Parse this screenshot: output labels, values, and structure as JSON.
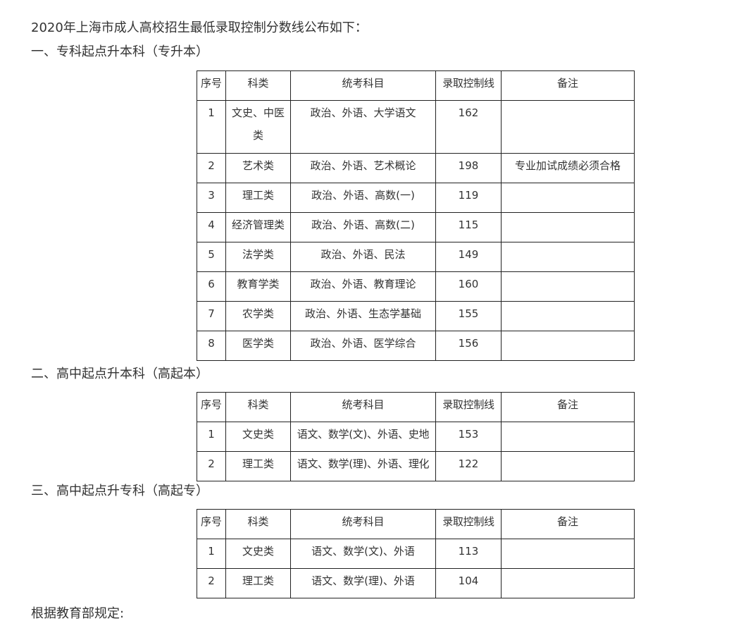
{
  "intro": "2020年上海市成人高校招生最低录取控制分数线公布如下：",
  "headers": [
    "序号",
    "科类",
    "统考科目",
    "录取控制线",
    "备注"
  ],
  "sections": [
    {
      "heading": "一、专科起点升本科（专升本）",
      "rows": [
        [
          "1",
          "文史、中医类",
          "政治、外语、大学语文",
          "162",
          ""
        ],
        [
          "2",
          "艺术类",
          "政治、外语、艺术概论",
          "198",
          "专业加试成绩必须合格"
        ],
        [
          "3",
          "理工类",
          "政治、外语、高数(一)",
          "119",
          ""
        ],
        [
          "4",
          "经济管理类",
          "政治、外语、高数(二)",
          "115",
          ""
        ],
        [
          "5",
          "法学类",
          "政治、外语、民法",
          "149",
          ""
        ],
        [
          "6",
          "教育学类",
          "政治、外语、教育理论",
          "160",
          ""
        ],
        [
          "7",
          "农学类",
          "政治、外语、生态学基础",
          "155",
          ""
        ],
        [
          "8",
          "医学类",
          "政治、外语、医学综合",
          "156",
          ""
        ]
      ]
    },
    {
      "heading": "二、高中起点升本科（高起本）",
      "rows": [
        [
          "1",
          "文史类",
          "语文、数学(文)、外语、史地",
          "153",
          ""
        ],
        [
          "2",
          "理工类",
          "语文、数学(理)、外语、理化",
          "122",
          ""
        ]
      ]
    },
    {
      "heading": "三、高中起点升专科（高起专）",
      "rows": [
        [
          "1",
          "文史类",
          "语文、数学(文)、外语",
          "113",
          ""
        ],
        [
          "2",
          "理工类",
          "语文、数学(理)、外语",
          "104",
          ""
        ]
      ]
    }
  ],
  "footer": "根据教育部规定:"
}
